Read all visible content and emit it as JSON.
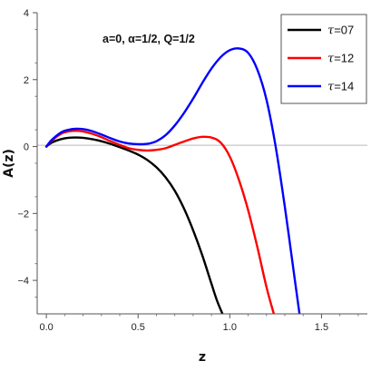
{
  "chart_data": {
    "type": "line",
    "title": "",
    "xlabel": "z",
    "ylabel": "A(z)",
    "xlim": [
      -0.05,
      1.75
    ],
    "ylim": [
      -5,
      4
    ],
    "xticks": [
      0.0,
      0.5,
      1.0,
      1.5
    ],
    "xtick_labels": [
      "0.0",
      "0.5",
      "1.0",
      "1.5"
    ],
    "yticks": [
      4,
      2,
      0,
      -2,
      -4
    ],
    "ytick_labels": [
      "4",
      "2",
      "0",
      "−2",
      "−4"
    ],
    "zero_line": true,
    "grid": false,
    "legend_position": "top-right",
    "annotation": "a=0, α=1/2, Q=1/2",
    "series": [
      {
        "name": "τ=07",
        "color": "#000000",
        "x": [
          0.0,
          0.03,
          0.08,
          0.12,
          0.16,
          0.2,
          0.25,
          0.3,
          0.35,
          0.4,
          0.45,
          0.5,
          0.55,
          0.6,
          0.65,
          0.7,
          0.75,
          0.8,
          0.85,
          0.9,
          0.93,
          0.96
        ],
        "y": [
          0.0,
          0.12,
          0.22,
          0.26,
          0.27,
          0.26,
          0.22,
          0.16,
          0.08,
          -0.02,
          -0.12,
          -0.24,
          -0.4,
          -0.62,
          -0.92,
          -1.32,
          -1.85,
          -2.5,
          -3.25,
          -4.1,
          -4.6,
          -5.0
        ]
      },
      {
        "name": "τ=12",
        "color": "#ff0000",
        "x": [
          0.0,
          0.03,
          0.08,
          0.12,
          0.16,
          0.2,
          0.25,
          0.3,
          0.35,
          0.4,
          0.45,
          0.5,
          0.55,
          0.6,
          0.65,
          0.7,
          0.75,
          0.8,
          0.85,
          0.9,
          0.95,
          1.0,
          1.05,
          1.1,
          1.15,
          1.2,
          1.24
        ],
        "y": [
          0.0,
          0.18,
          0.38,
          0.45,
          0.47,
          0.45,
          0.38,
          0.28,
          0.16,
          0.05,
          -0.05,
          -0.1,
          -0.12,
          -0.1,
          -0.05,
          0.05,
          0.15,
          0.24,
          0.29,
          0.27,
          0.12,
          -0.3,
          -1.0,
          -1.9,
          -3.0,
          -4.2,
          -5.0
        ]
      },
      {
        "name": "τ=14",
        "color": "#0000ff",
        "x": [
          0.0,
          0.03,
          0.08,
          0.12,
          0.16,
          0.2,
          0.25,
          0.3,
          0.35,
          0.4,
          0.45,
          0.5,
          0.55,
          0.6,
          0.65,
          0.7,
          0.75,
          0.8,
          0.85,
          0.9,
          0.95,
          1.0,
          1.05,
          1.1,
          1.15,
          1.2,
          1.25,
          1.3,
          1.35,
          1.38
        ],
        "y": [
          0.0,
          0.2,
          0.42,
          0.5,
          0.53,
          0.52,
          0.46,
          0.36,
          0.25,
          0.15,
          0.09,
          0.07,
          0.08,
          0.16,
          0.34,
          0.63,
          1.0,
          1.43,
          1.9,
          2.33,
          2.67,
          2.88,
          2.93,
          2.8,
          2.3,
          1.4,
          0.0,
          -1.8,
          -3.8,
          -5.0
        ]
      }
    ]
  }
}
